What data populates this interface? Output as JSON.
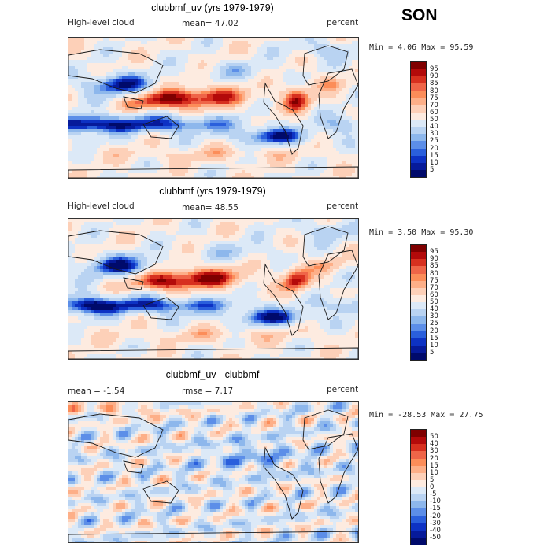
{
  "season": "SON",
  "panels": [
    {
      "title": "clubbmf_uv (yrs 1979-1979)",
      "left_label": "High-level cloud",
      "mean_text": "mean=  47.02",
      "right_label": "percent",
      "minmax": "Min =    4.06 Max =   95.59",
      "levels": [
        "95",
        "90",
        "85",
        "80",
        "75",
        "70",
        "60",
        "50",
        "40",
        "30",
        "25",
        "20",
        "15",
        "10",
        "5"
      ],
      "colors": [
        "#7f0000",
        "#b30a0a",
        "#d7301f",
        "#ef6548",
        "#fc8d59",
        "#fdaf88",
        "#fdd0b8",
        "#fdebe0",
        "#dce9f7",
        "#b9d3f2",
        "#8db7ec",
        "#5c8ee8",
        "#2a5fdc",
        "#0d32c4",
        "#061a9a",
        "#000a6b"
      ],
      "field": "clim1"
    },
    {
      "title": "clubbmf (yrs 1979-1979)",
      "left_label": "High-level cloud",
      "mean_text": "mean=  48.55",
      "right_label": "percent",
      "minmax": "Min =    3.50 Max =   95.30",
      "levels": [
        "95",
        "90",
        "85",
        "80",
        "75",
        "70",
        "60",
        "50",
        "40",
        "30",
        "25",
        "20",
        "15",
        "10",
        "5"
      ],
      "colors": [
        "#7f0000",
        "#b30a0a",
        "#d7301f",
        "#ef6548",
        "#fc8d59",
        "#fdaf88",
        "#fdd0b8",
        "#fdebe0",
        "#dce9f7",
        "#b9d3f2",
        "#8db7ec",
        "#5c8ee8",
        "#2a5fdc",
        "#0d32c4",
        "#061a9a",
        "#000a6b"
      ],
      "field": "clim2"
    },
    {
      "title": "clubbmf_uv - clubbmf",
      "mean_text": "mean =   -1.54",
      "rmse_text": "rmse =    7.17",
      "right_label": "percent",
      "minmax": "Min = -28.53 Max =   27.75",
      "levels": [
        "50",
        "40",
        "30",
        "20",
        "15",
        "10",
        "5",
        "0",
        "-5",
        "-10",
        "-15",
        "-20",
        "-30",
        "-40",
        "-50"
      ],
      "colors": [
        "#7f0000",
        "#b30a0a",
        "#d7301f",
        "#ef6548",
        "#fc8d59",
        "#fdaf88",
        "#fdd0b8",
        "#fdebe0",
        "#dce9f7",
        "#b9d3f2",
        "#8db7ec",
        "#5c8ee8",
        "#2a5fdc",
        "#0d32c4",
        "#061a9a",
        "#000a6b"
      ],
      "field": "diff"
    }
  ]
}
